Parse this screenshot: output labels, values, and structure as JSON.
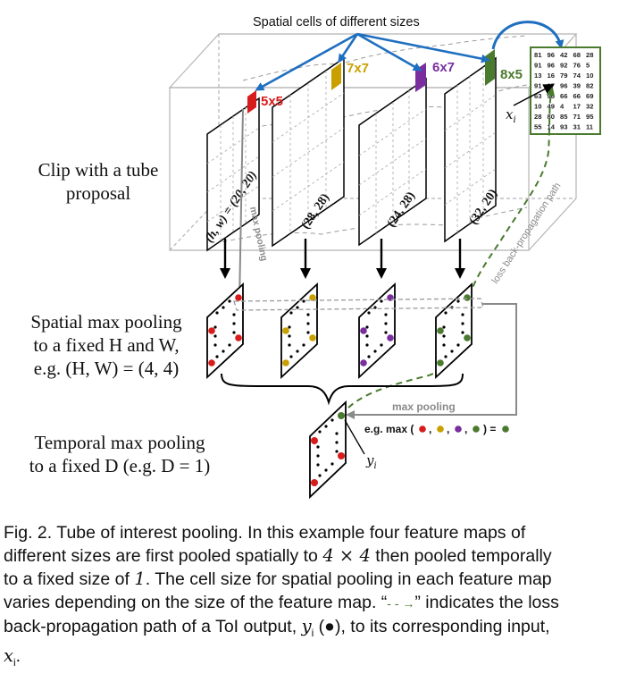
{
  "labels": {
    "top": "Spatial cells of different sizes",
    "clip_line1": "Clip with a tube",
    "clip_line2": "proposal",
    "spatial_line1": "Spatial max pooling",
    "spatial_line2": "to a fixed H and W,",
    "spatial_line3": "e.g. (H, W) = (4, 4)",
    "temporal_line1": "Temporal max pooling",
    "temporal_line2": "to a fixed D (e.g. D = 1)",
    "max_pooling_vertical": "max pooling",
    "max_pooling_horizontal": "max pooling",
    "eg_max": "e.g. max (",
    "eg_end": ") =",
    "comma": ",",
    "backprop": "loss back-propagation path",
    "xi": "x",
    "xi_sub": "i",
    "yi": "y",
    "yi_sub": "i"
  },
  "maps": [
    {
      "cell": "5x5",
      "size": "(h, w) = (20, 20)",
      "color": "#d81b1b"
    },
    {
      "cell": "7x7",
      "size": "(28, 28)",
      "color": "#c9a000"
    },
    {
      "cell": "6x7",
      "size": "(24, 28)",
      "color": "#7a2e9e"
    },
    {
      "cell": "8x5",
      "size": "(32, 20)",
      "color": "#4a7a2e"
    }
  ],
  "grid": [
    [
      "81",
      "96",
      "42",
      "68",
      "28"
    ],
    [
      "91",
      "96",
      "92",
      "76",
      "5"
    ],
    [
      "13",
      "16",
      "79",
      "74",
      "10"
    ],
    [
      "91",
      "97",
      "96",
      "39",
      "82"
    ],
    [
      "63",
      "96",
      "66",
      "66",
      "69"
    ],
    [
      "10",
      "49",
      "4",
      "17",
      "32"
    ],
    [
      "28",
      "80",
      "85",
      "71",
      "95"
    ],
    [
      "55",
      "14",
      "93",
      "31",
      "11"
    ]
  ],
  "caption": {
    "line1": "Fig. 2. Tube of interest pooling. In this example four feature maps of",
    "line2a": "different sizes are first pooled spatially to ",
    "line2m": "4 × 4",
    "line2b": " then pooled temporally",
    "line3a": "to a fixed size of ",
    "line3m": "1",
    "line3b": ". The cell size for spatial pooling in each feature map",
    "line4a": "varies depending on the size of the feature map. “",
    "line4arrow": "- - →",
    "line4b": "” indicates the loss",
    "line5a": "back-propagation path of a ToI output, ",
    "line5m": "y",
    "line5sub": "i",
    "line5b": " (●), to its corresponding input,",
    "line6m": "x",
    "line6sub": "i",
    "line6b": "."
  },
  "colors": {
    "red": "#d81b1b",
    "yellow": "#c9a000",
    "purple": "#7a2e9e",
    "green": "#4a7a2e",
    "blue": "#1f6fc0",
    "grey": "#8a8a8a"
  }
}
